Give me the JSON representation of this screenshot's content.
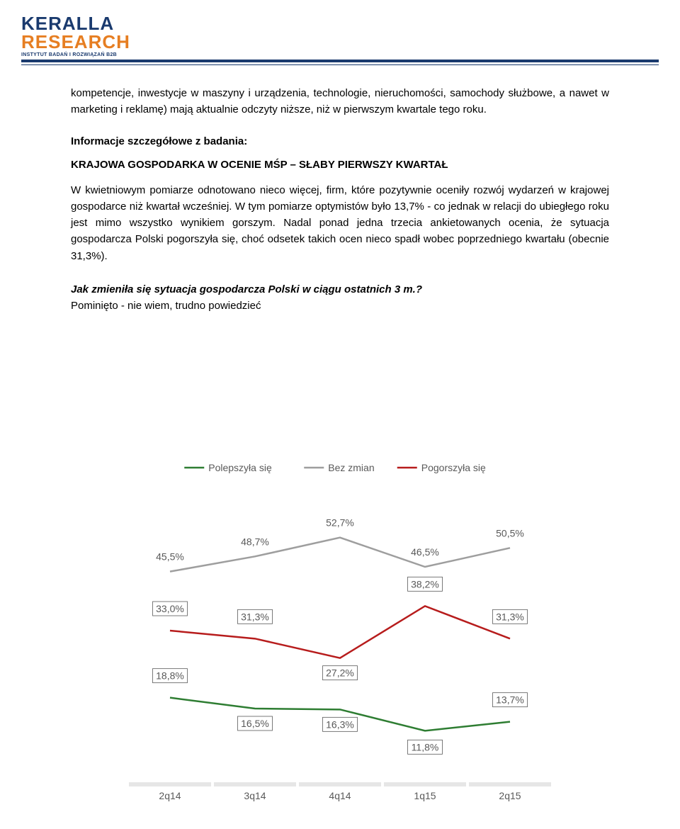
{
  "logo": {
    "line1": "KERALLA",
    "line2": "RESEARCH",
    "sub": "INSTYTUT BADAŃ I ROZWIĄZAŃ B2B"
  },
  "para1": "kompetencje, inwestycje w maszyny i urządzenia, technologie, nieruchomości, samochody służbowe, a nawet w marketing i reklamę) mają aktualnie odczyty niższe, niż w pierwszym kwartale tego roku.",
  "section_label": "Informacje szczegółowe z badania:",
  "section_heading": "KRAJOWA GOSPODARKA W OCENIE MŚP – SŁABY PIERWSZY KWARTAŁ",
  "para2": "W kwietniowym pomiarze odnotowano nieco więcej, firm, które pozytywnie oceniły rozwój wydarzeń w krajowej gospodarce niż kwartał wcześniej. W tym pomiarze optymistów było 13,7% - co jednak w relacji do ubiegłego roku jest mimo wszystko wynikiem gorszym. Nadal ponad jedna trzecia ankietowanych ocenia, że sytuacja gospodarcza Polski pogorszyła się, choć odsetek takich ocen nieco spadł wobec poprzedniego kwartału (obecnie 31,3%).",
  "question_bold": "Jak zmieniła się sytuacja gospodarcza Polski w ciągu ostatnich 3 m.?",
  "question_rest": "Pominięto - nie wiem, trudno powiedzieć",
  "chart": {
    "type": "line",
    "categories": [
      "2q14",
      "3q14",
      "4q14",
      "1q15",
      "2q15"
    ],
    "series": [
      {
        "name": "Polepszyła się",
        "color": "#2e7d32",
        "values": [
          18.8,
          16.5,
          16.3,
          11.8,
          13.7
        ],
        "boxed": [
          true,
          true,
          true,
          true,
          true
        ],
        "label_offset": [
          -26,
          26,
          26,
          28,
          -26
        ]
      },
      {
        "name": "Bez zmian",
        "color": "#9e9e9e",
        "values": [
          45.5,
          48.7,
          52.7,
          46.5,
          50.5
        ],
        "boxed": [
          false,
          false,
          false,
          false,
          false
        ],
        "label_offset": [
          -16,
          -16,
          -16,
          -16,
          -16
        ]
      },
      {
        "name": "Pogorszyła się",
        "color": "#b71c1c",
        "values": [
          33.0,
          31.3,
          27.2,
          38.2,
          31.3
        ],
        "boxed": [
          true,
          true,
          true,
          true,
          true
        ],
        "label_offset": [
          -26,
          -26,
          26,
          -26,
          -26
        ]
      }
    ],
    "ylim": [
      0,
      60
    ],
    "plot_bg": "#ffffff",
    "line_width": 2.5,
    "label_fontsize": 14,
    "legend_fontsize": 14,
    "axis_fontsize": 14
  }
}
